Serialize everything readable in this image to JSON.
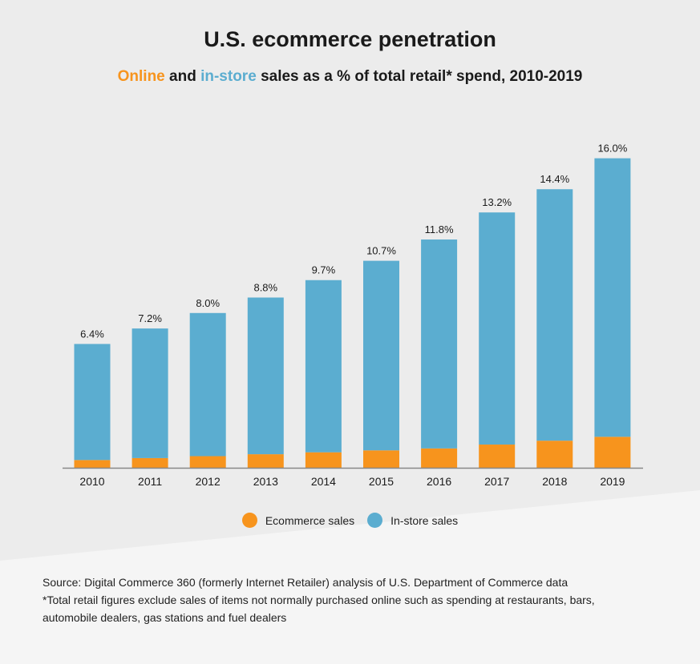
{
  "title": "U.S. ecommerce penetration",
  "subtitle": {
    "online": "Online",
    "and": "and",
    "instore": "in-store",
    "rest": "sales as a % of total retail* spend, 2010-2019"
  },
  "colors": {
    "ecommerce": "#f7941d",
    "instore": "#5badd0",
    "axis": "#888888",
    "background": "#ececec",
    "footer_background": "#f5f5f5"
  },
  "chart_data": {
    "type": "bar",
    "stacked": true,
    "percent_of_total": true,
    "categories": [
      "2010",
      "2011",
      "2012",
      "2013",
      "2014",
      "2015",
      "2016",
      "2017",
      "2018",
      "2019"
    ],
    "series": [
      {
        "name": "Ecommerce sales",
        "values": [
          0.4,
          0.5,
          0.6,
          0.7,
          0.8,
          0.9,
          1.0,
          1.2,
          1.4,
          1.6
        ]
      },
      {
        "name": "In-store sales",
        "values": [
          6.0,
          6.7,
          7.4,
          8.1,
          8.9,
          9.8,
          10.8,
          12.0,
          13.0,
          14.4
        ]
      }
    ],
    "data_labels": [
      "6.4%",
      "7.2%",
      "8.0%",
      "8.8%",
      "9.7%",
      "10.7%",
      "11.8%",
      "13.2%",
      "14.4%",
      "16.0%"
    ],
    "legend_position": "bottom-center",
    "grid": false
  },
  "legend": {
    "ecommerce": "Ecommerce sales",
    "instore": "In-store sales"
  },
  "notes": {
    "source": "Source: Digital Commerce 360 (formerly Internet Retailer) analysis of U.S. Department of Commerce data",
    "footnote_line1": "*Total retail figures exclude sales of items not normally purchased online such as spending at restaurants, bars,",
    "footnote_line2": "automobile dealers, gas stations and fuel dealers"
  }
}
